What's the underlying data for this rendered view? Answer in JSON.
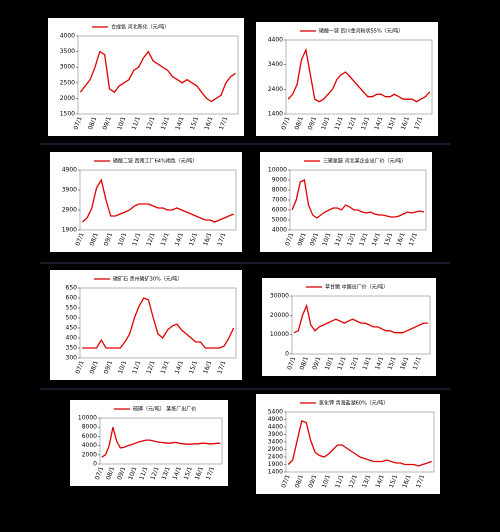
{
  "chart_data": [
    {
      "type": "line",
      "title": "合成氨 河北新化（元/吨）",
      "color": "#e00000",
      "categories": [
        "07/1",
        null,
        null,
        "08/1",
        null,
        null,
        "09/1",
        null,
        null,
        "10/1",
        null,
        null,
        "11/1",
        null,
        null,
        "12/1",
        null,
        null,
        "13/1",
        null,
        null,
        "14/1",
        null,
        null,
        "15/1",
        null,
        null,
        "16/1",
        null,
        null,
        "17/1",
        null,
        null
      ],
      "values": [
        2200,
        2400,
        2600,
        3000,
        3500,
        3400,
        2300,
        2200,
        2400,
        2500,
        2600,
        2900,
        3000,
        3300,
        3500,
        3200,
        3100,
        3000,
        2900,
        2700,
        2600,
        2500,
        2600,
        2500,
        2400,
        2200,
        2000,
        1900,
        2000,
        2100,
        2500,
        2700,
        2800
      ],
      "ylim": [
        1500,
        4000
      ],
      "yticks": [
        1500,
        2000,
        2500,
        3000,
        3500,
        4000
      ]
    },
    {
      "type": "line",
      "title": "磷酸一铵 四川金河粉状55%（元/吨）",
      "color": "#e00000",
      "categories": [
        "07/1",
        null,
        null,
        "08/1",
        null,
        null,
        "09/1",
        null,
        null,
        "10/1",
        null,
        null,
        "11/1",
        null,
        null,
        "12/1",
        null,
        null,
        "13/1",
        null,
        null,
        "14/1",
        null,
        null,
        "15/1",
        null,
        null,
        "16/1",
        null,
        null,
        "17/1",
        null,
        null
      ],
      "values": [
        2000,
        2200,
        2600,
        3600,
        4000,
        3000,
        2000,
        1900,
        2000,
        2200,
        2400,
        2800,
        3000,
        3100,
        2900,
        2700,
        2500,
        2300,
        2100,
        2100,
        2200,
        2200,
        2100,
        2100,
        2200,
        2100,
        2000,
        2000,
        2000,
        1900,
        2000,
        2100,
        2300
      ],
      "ylim": [
        1400,
        4400
      ],
      "yticks": [
        1400,
        2400,
        3400,
        4400
      ]
    },
    {
      "type": "line",
      "title": "磷酸二铵 西南工厂64%褐色（元/吨）",
      "color": "#e00000",
      "categories": [
        "07/1",
        null,
        null,
        "08/1",
        null,
        null,
        "09/1",
        null,
        null,
        "10/1",
        null,
        null,
        "11/1",
        null,
        null,
        "12/1",
        null,
        null,
        "13/1",
        null,
        null,
        "14/1",
        null,
        null,
        "15/1",
        null,
        null,
        "16/1",
        null,
        null,
        "17/1",
        null,
        null
      ],
      "values": [
        2300,
        2500,
        3000,
        4000,
        4400,
        3400,
        2600,
        2600,
        2700,
        2800,
        2900,
        3100,
        3200,
        3200,
        3200,
        3100,
        3000,
        3000,
        2900,
        2900,
        3000,
        2900,
        2800,
        2700,
        2600,
        2500,
        2400,
        2400,
        2300,
        2400,
        2500,
        2600,
        2700
      ],
      "ylim": [
        1900,
        4900
      ],
      "yticks": [
        1900,
        2900,
        3900,
        4900
      ]
    },
    {
      "type": "line",
      "title": "三聚氰胺 河北某企业出厂价（元/吨）",
      "color": "#e00000",
      "categories": [
        "07/1",
        null,
        null,
        "08/1",
        null,
        null,
        "09/1",
        null,
        null,
        "10/1",
        null,
        null,
        "11/1",
        null,
        null,
        "12/1",
        null,
        null,
        "13/1",
        null,
        null,
        "14/1",
        null,
        null,
        "15/1",
        null,
        null,
        "16/1",
        null,
        null,
        "17/1",
        null,
        null
      ],
      "values": [
        6000,
        7000,
        8800,
        9000,
        6500,
        5500,
        5200,
        5500,
        5800,
        6000,
        6200,
        6200,
        6000,
        6500,
        6300,
        6000,
        6000,
        5800,
        5700,
        5800,
        5600,
        5500,
        5500,
        5400,
        5300,
        5300,
        5400,
        5600,
        5800,
        5700,
        5800,
        5900,
        5800
      ],
      "ylim": [
        4000,
        10000
      ],
      "yticks": [
        4000,
        5000,
        6000,
        7000,
        8000,
        9000,
        10000
      ]
    },
    {
      "type": "line",
      "title": "磷矿石 贵州磷矿30%（元/吨）",
      "color": "#e00000",
      "categories": [
        "07/1",
        null,
        null,
        "08/1",
        null,
        null,
        "09/1",
        null,
        null,
        "10/1",
        null,
        null,
        "11/1",
        null,
        null,
        "12/1",
        null,
        null,
        "13/1",
        null,
        null,
        "14/1",
        null,
        null,
        "15/1",
        null,
        null,
        "16/1",
        null,
        null,
        "17/1",
        null,
        null
      ],
      "values": [
        350,
        350,
        350,
        350,
        390,
        350,
        350,
        350,
        350,
        380,
        420,
        500,
        560,
        600,
        590,
        500,
        420,
        400,
        440,
        460,
        470,
        440,
        420,
        400,
        380,
        380,
        350,
        350,
        350,
        350,
        360,
        400,
        450
      ],
      "ylim": [
        300,
        650
      ],
      "yticks": [
        300,
        350,
        400,
        450,
        500,
        550,
        600,
        650
      ]
    },
    {
      "type": "line",
      "title": "草甘膦 中国出厂价（元/吨）",
      "color": "#e00000",
      "categories": [
        "07/1",
        null,
        null,
        "08/1",
        null,
        null,
        "09/1",
        null,
        null,
        "10/1",
        null,
        null,
        "11/1",
        null,
        null,
        "12/1",
        null,
        null,
        "13/1",
        null,
        null,
        "14/1",
        null,
        null,
        "15/1",
        null,
        null,
        "16/1",
        null,
        null,
        "17/1",
        null,
        null
      ],
      "values": [
        11000,
        12000,
        20000,
        25000,
        15000,
        12000,
        14000,
        15000,
        16000,
        17000,
        18000,
        17000,
        16000,
        17000,
        18000,
        17000,
        16000,
        16000,
        15000,
        14000,
        14000,
        13000,
        12000,
        12000,
        11000,
        11000,
        11000,
        12000,
        13000,
        14000,
        15000,
        16000,
        16000
      ],
      "ylim": [
        0,
        30000
      ],
      "yticks": [
        0,
        10000,
        20000,
        30000
      ]
    },
    {
      "type": "line",
      "title": "硫磺（元/吨） 某炼厂出厂价",
      "color": "#e00000",
      "categories": [
        "07/1",
        null,
        null,
        "08/1",
        null,
        null,
        "09/1",
        null,
        null,
        "10/1",
        null,
        null,
        "11/1",
        null,
        null,
        "12/1",
        null,
        null,
        "13/1",
        null,
        null,
        "14/1",
        null,
        null,
        "15/1",
        null,
        null,
        "16/1",
        null,
        null,
        "17/1",
        null,
        null
      ],
      "values": [
        1500,
        2000,
        4000,
        8000,
        5000,
        3500,
        3600,
        4000,
        4200,
        4500,
        4800,
        5000,
        5200,
        5200,
        5000,
        4800,
        4700,
        4600,
        4500,
        4600,
        4700,
        4500,
        4400,
        4300,
        4300,
        4400,
        4400,
        4500,
        4500,
        4400,
        4400,
        4500,
        4500
      ],
      "ylim": [
        0,
        10000
      ],
      "yticks": [
        0,
        2000,
        4000,
        6000,
        8000,
        10000
      ]
    },
    {
      "type": "line",
      "title": "氯化钾 青海盐湖60%（元/吨）",
      "color": "#e00000",
      "categories": [
        "07/1",
        null,
        null,
        "08/1",
        null,
        null,
        "09/1",
        null,
        null,
        "10/1",
        null,
        null,
        "11/1",
        null,
        null,
        "12/1",
        null,
        null,
        "13/1",
        null,
        null,
        "14/1",
        null,
        null,
        "15/1",
        null,
        null,
        "16/1",
        null,
        null,
        "17/1",
        null,
        null
      ],
      "values": [
        1900,
        2200,
        3500,
        4800,
        4700,
        3500,
        2700,
        2500,
        2400,
        2600,
        2900,
        3200,
        3200,
        3000,
        2800,
        2600,
        2400,
        2300,
        2200,
        2100,
        2100,
        2100,
        2200,
        2100,
        2000,
        2000,
        1900,
        1900,
        1900,
        1800,
        1900,
        2000,
        2100
      ],
      "ylim": [
        1400,
        5400
      ],
      "yticks": [
        1400,
        1900,
        2400,
        2900,
        3400,
        3900,
        4400,
        4900,
        5400
      ]
    }
  ]
}
